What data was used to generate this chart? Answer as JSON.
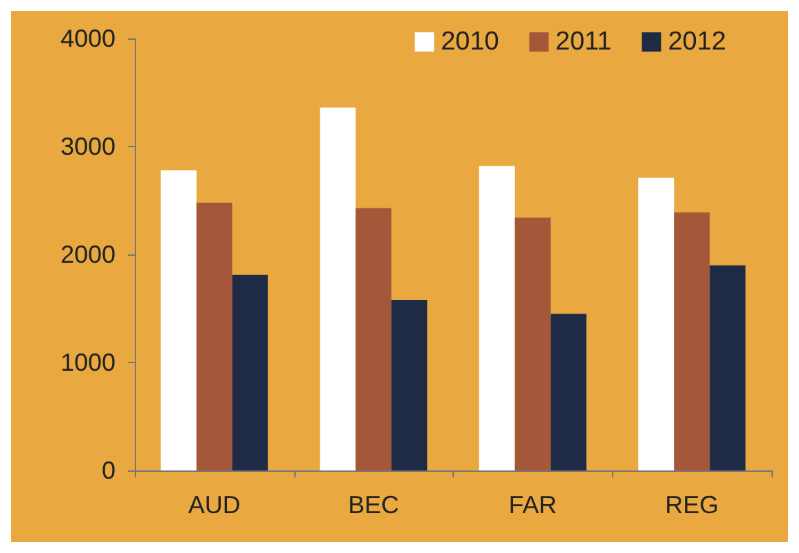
{
  "chart_data": {
    "type": "bar",
    "categories": [
      "AUD",
      "BEC",
      "FAR",
      "REG"
    ],
    "series": [
      {
        "name": "2010",
        "color": "#ffffff",
        "values": [
          2780,
          3360,
          2820,
          2710
        ]
      },
      {
        "name": "2011",
        "color": "#a5573a",
        "values": [
          2480,
          2430,
          2340,
          2390
        ]
      },
      {
        "name": "2012",
        "color": "#1f2a44",
        "values": [
          1810,
          1580,
          1450,
          1900
        ]
      }
    ],
    "ylim": [
      0,
      4000
    ],
    "yticks": [
      0,
      1000,
      2000,
      3000,
      4000
    ],
    "grid": false,
    "legend": "top right"
  }
}
